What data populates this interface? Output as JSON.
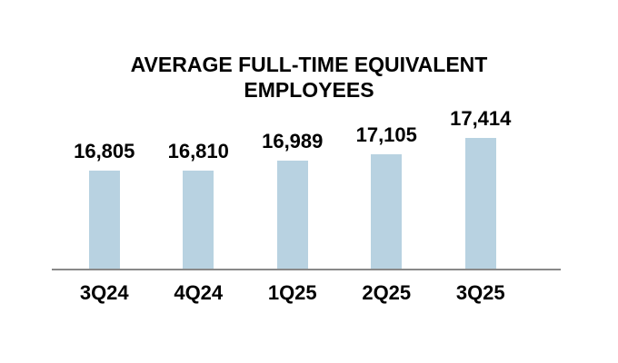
{
  "page": {
    "background_color": "#FFFFFF"
  },
  "chart": {
    "title": "AVERAGE FULL-TIME EQUIVALENT EMPLOYEES"
  },
  "chart_data": {
    "type": "bar",
    "title": "AVERAGE FULL-TIME EQUIVALENT EMPLOYEES",
    "categories": [
      "3Q24",
      "4Q24",
      "1Q25",
      "2Q25",
      "3Q25"
    ],
    "values": [
      16805,
      16810,
      16989,
      17105,
      17414
    ],
    "value_labels": [
      "16,805",
      "16,810",
      "16,989",
      "17,105",
      "17,414"
    ],
    "xlabel": "",
    "ylabel": "",
    "ylim": [
      15000,
      17600
    ],
    "grid": false,
    "legend": "none",
    "data_labels_position": "outside-end",
    "bar_color": "#B8D2E1",
    "axis_line_color": "#898989",
    "text_color": "#000000"
  }
}
